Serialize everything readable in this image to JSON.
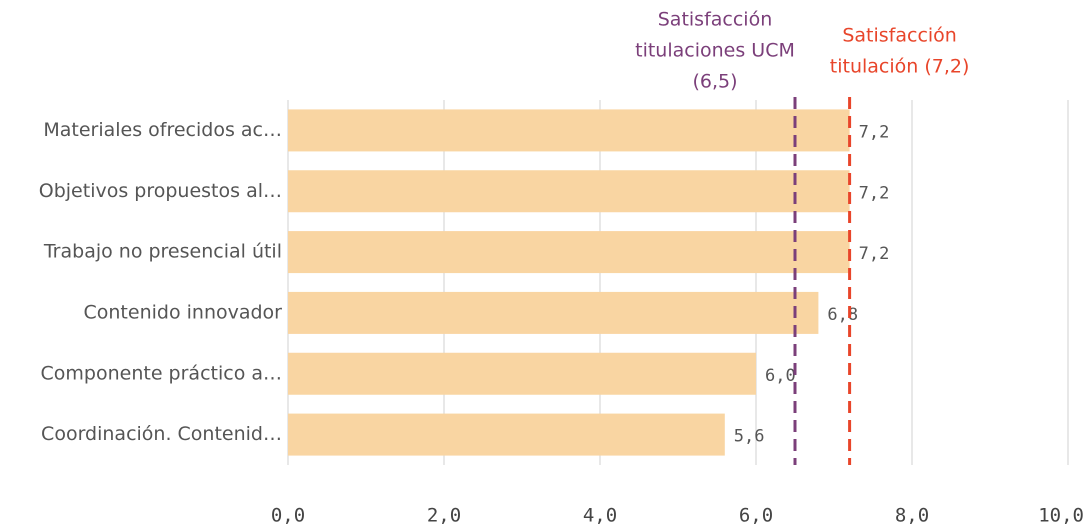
{
  "chart_data": {
    "type": "bar",
    "orientation": "horizontal",
    "categories": [
      "Materiales ofrecidos ac…",
      "Objetivos propuestos al…",
      "Trabajo no presencial útil",
      "Contenido innovador",
      "Componente práctico a…",
      "Coordinación. Contenid…"
    ],
    "values": [
      7.2,
      7.2,
      7.2,
      6.8,
      6.0,
      5.6
    ],
    "value_labels": [
      "7,2",
      "7,2",
      "7,2",
      "6,8",
      "6,0",
      "5,6"
    ],
    "color": "#f9d5a2",
    "xlim": [
      0,
      10
    ],
    "xticks": [
      {
        "value": 0,
        "label": "0,0"
      },
      {
        "value": 2,
        "label": "2,0"
      },
      {
        "value": 4,
        "label": "4,0"
      },
      {
        "value": 6,
        "label": "6,0"
      },
      {
        "value": 8,
        "label": "8,0"
      },
      {
        "value": 10,
        "label": "10,0"
      }
    ],
    "grid": true,
    "reference_lines": [
      {
        "value": 6.5,
        "color": "#7b3f7a",
        "label_lines": [
          "Satisfacción",
          "titulaciones UCM",
          "(6,5)"
        ]
      },
      {
        "value": 7.2,
        "color": "#e8452a",
        "label_lines": [
          "Satisfacción",
          "titulación (7,2)"
        ]
      }
    ]
  }
}
